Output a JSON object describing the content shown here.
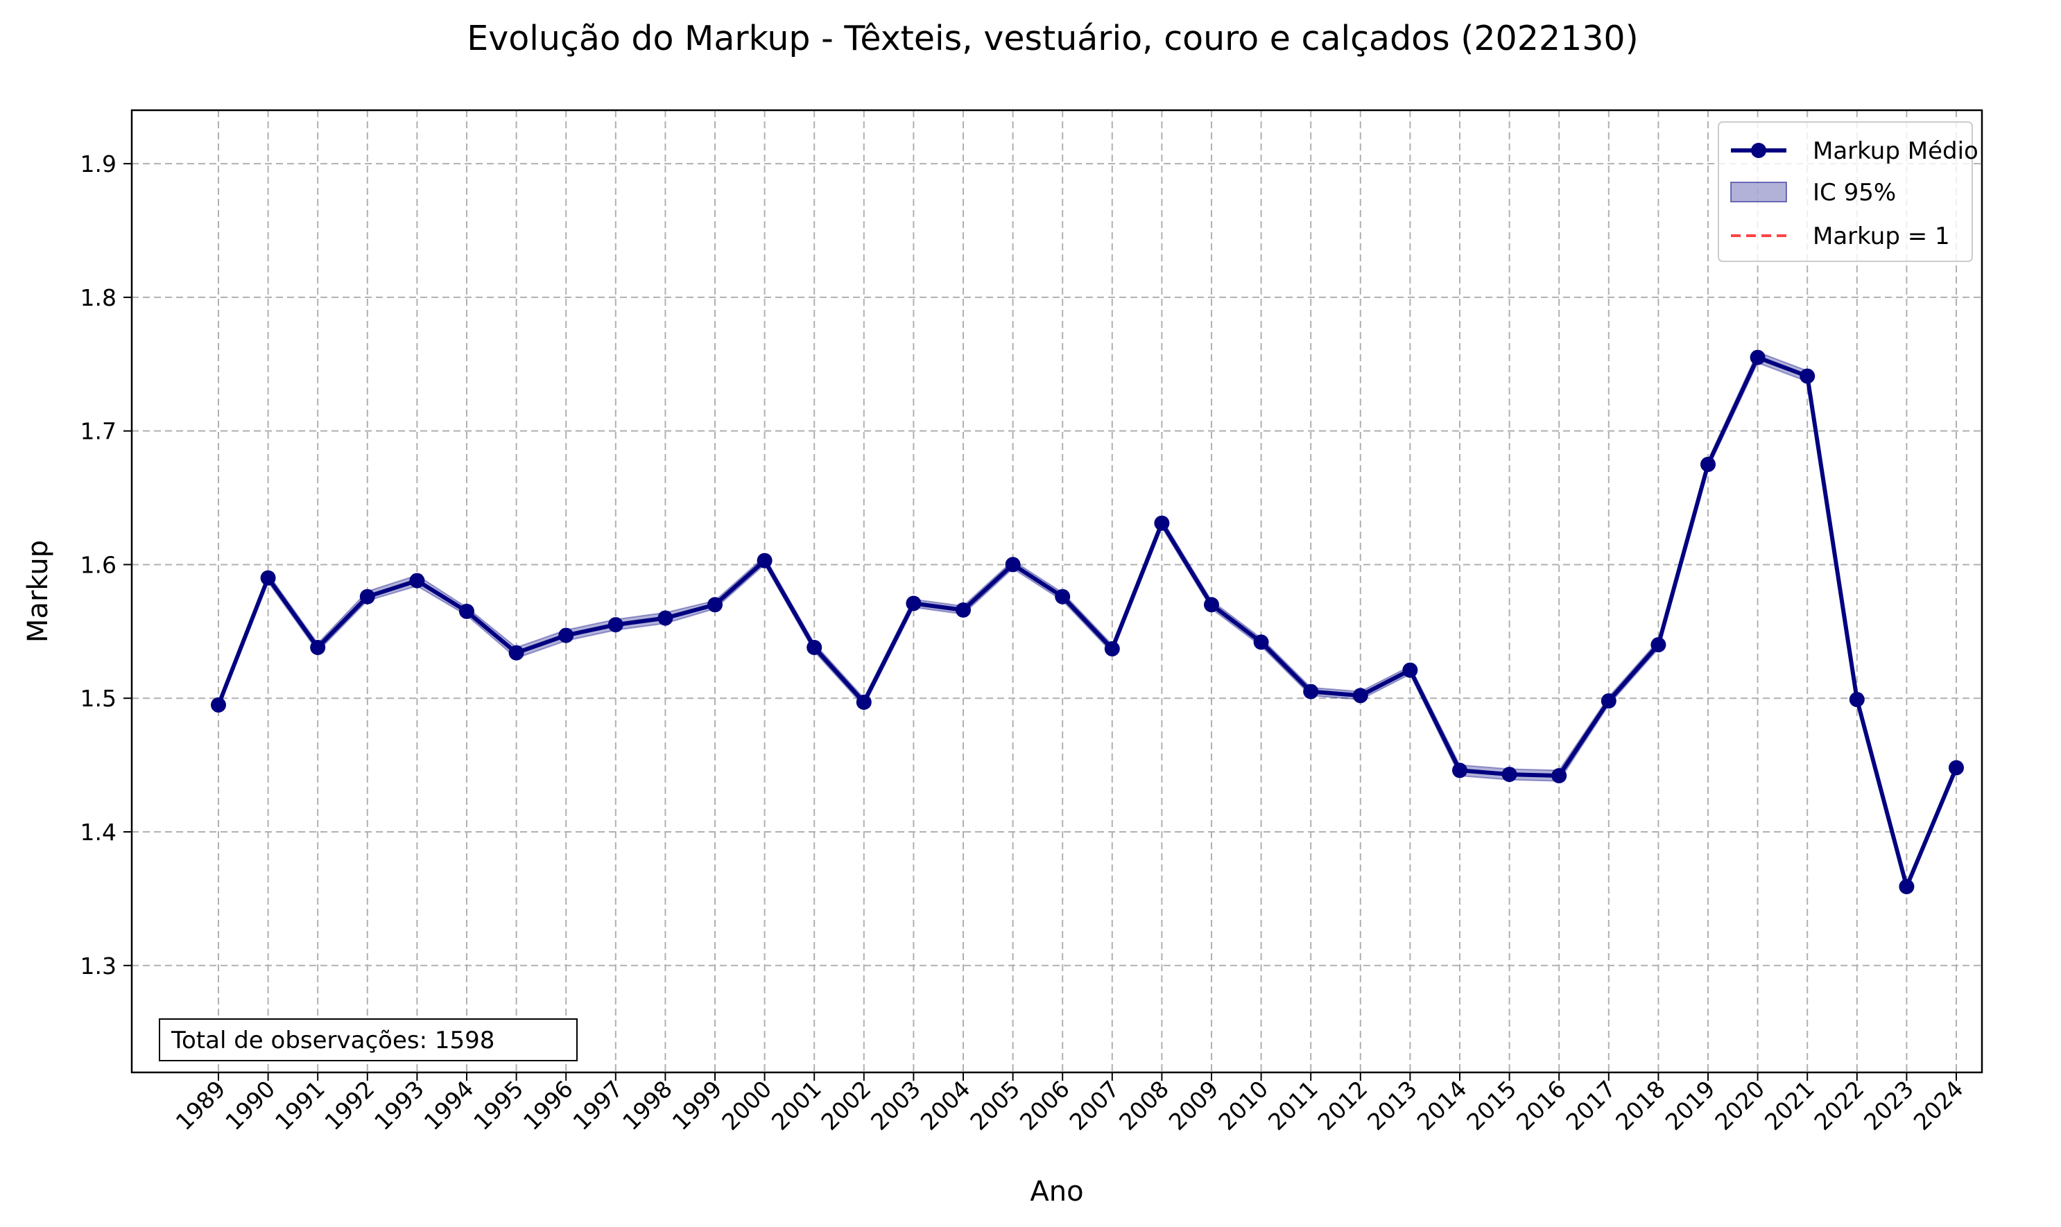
{
  "chart_data": {
    "type": "line",
    "title": "Evolução do Markup - Têxteis, vestuário, couro e calçados (2022130)",
    "xlabel": "Ano",
    "ylabel": "Markup",
    "ylim": [
      1.22,
      1.94
    ],
    "yticks": [
      "1.3",
      "1.4",
      "1.5",
      "1.6",
      "1.7",
      "1.8",
      "1.9"
    ],
    "categories": [
      "1989",
      "1990",
      "1991",
      "1992",
      "1993",
      "1994",
      "1995",
      "1996",
      "1997",
      "1998",
      "1999",
      "2000",
      "2001",
      "2002",
      "2003",
      "2004",
      "2005",
      "2006",
      "2007",
      "2008",
      "2009",
      "2010",
      "2011",
      "2012",
      "2013",
      "2014",
      "2015",
      "2016",
      "2017",
      "2018",
      "2019",
      "2020",
      "2021",
      "2022",
      "2023",
      "2024"
    ],
    "series": [
      {
        "name": "Markup Médio",
        "color": "#000080",
        "values": [
          1.495,
          1.59,
          1.538,
          1.576,
          1.588,
          1.565,
          1.534,
          1.547,
          1.555,
          1.56,
          1.57,
          1.603,
          1.538,
          1.497,
          1.571,
          1.566,
          1.6,
          1.576,
          1.537,
          1.631,
          1.57,
          1.542,
          1.505,
          1.502,
          1.521,
          1.446,
          1.443,
          1.442,
          1.498,
          1.54,
          1.675,
          1.755,
          1.741,
          1.499,
          1.359,
          1.448
        ]
      }
    ],
    "ci": {
      "name": "IC 95%",
      "color": "#000080",
      "lower": [
        1.494,
        1.587,
        1.535,
        1.573,
        1.584,
        1.562,
        1.53,
        1.543,
        1.551,
        1.556,
        1.567,
        1.6,
        1.535,
        1.494,
        1.568,
        1.563,
        1.597,
        1.573,
        1.534,
        1.628,
        1.567,
        1.539,
        1.502,
        1.499,
        1.518,
        1.442,
        1.439,
        1.438,
        1.495,
        1.537,
        1.672,
        1.751,
        1.737,
        1.497,
        1.357,
        1.446
      ],
      "upper": [
        1.496,
        1.593,
        1.541,
        1.58,
        1.592,
        1.568,
        1.538,
        1.551,
        1.559,
        1.564,
        1.573,
        1.606,
        1.541,
        1.5,
        1.574,
        1.569,
        1.603,
        1.579,
        1.54,
        1.634,
        1.573,
        1.545,
        1.508,
        1.505,
        1.524,
        1.45,
        1.447,
        1.446,
        1.501,
        1.543,
        1.678,
        1.759,
        1.745,
        1.501,
        1.361,
        1.45
      ]
    },
    "reference_line": {
      "name": "Markup = 1",
      "value": 1,
      "color": "#ff4444"
    },
    "legend": {
      "position": "top-right",
      "entries": [
        "Markup Médio",
        "IC 95%",
        "Markup = 1"
      ]
    },
    "annotation": "Total de observações: 1598",
    "grid": true
  }
}
